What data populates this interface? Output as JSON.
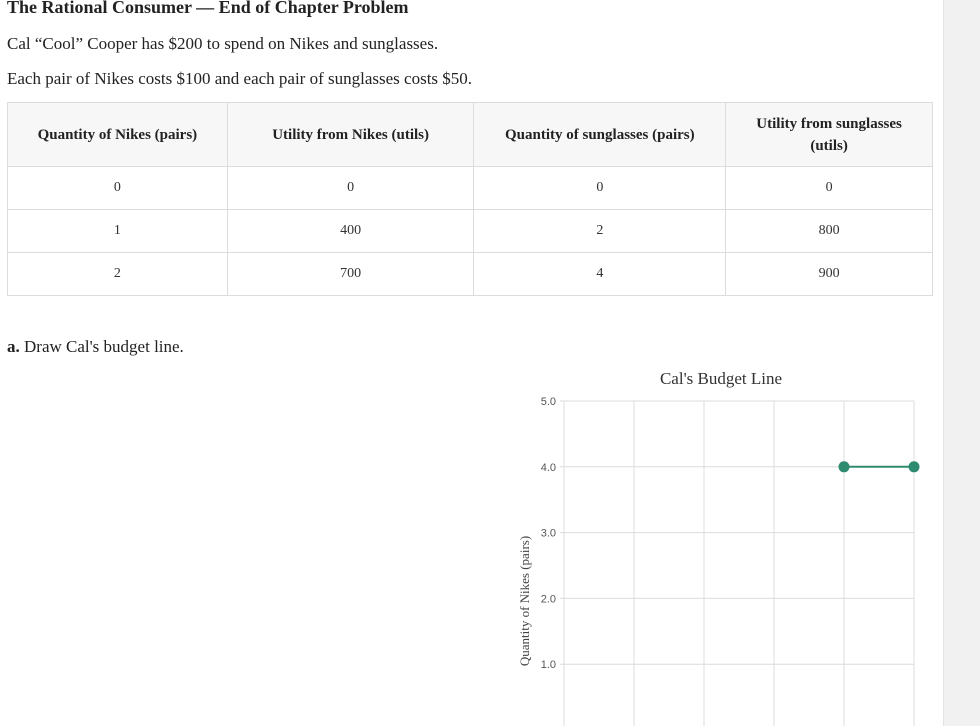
{
  "header": {
    "title": "The Rational Consumer — End of Chapter Problem"
  },
  "intro": {
    "paragraph1": "Cal “Cool” Cooper has $200 to spend on Nikes and sunglasses.",
    "paragraph2": "Each pair of Nikes costs $100 and each pair of sunglasses costs $50."
  },
  "table": {
    "headers": [
      "Quantity of Nikes (pairs)",
      "Utility from Nikes (utils)",
      "Quantity of sunglasses (pairs)",
      "Utility from sunglasses (utils)"
    ],
    "rows": [
      [
        "0",
        "0",
        "0",
        "0"
      ],
      [
        "1",
        "400",
        "2",
        "800"
      ],
      [
        "2",
        "700",
        "4",
        "900"
      ]
    ]
  },
  "question_a": {
    "label": "a.",
    "text": "Draw Cal's budget line."
  },
  "chart_data": {
    "type": "line",
    "title": "Cal's Budget Line",
    "ylabel": "Quantity of Nikes (pairs)",
    "xlabel": "",
    "ylim": [
      0,
      5
    ],
    "y_ticks": [
      "5.0",
      "4.0",
      "3.0",
      "2.0",
      "1.0"
    ],
    "grid": true,
    "series": [
      {
        "color": "#2e8b6f",
        "points": [
          {
            "x": 4,
            "y": 4
          },
          {
            "x": 5,
            "y": 4
          }
        ]
      }
    ]
  }
}
